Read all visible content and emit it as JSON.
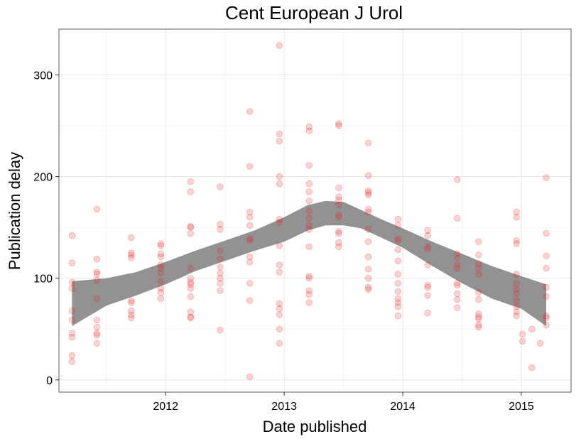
{
  "chart_data": {
    "type": "scatter",
    "title": "Cent European J Urol",
    "xlabel": "Date published",
    "ylabel": "Publication delay",
    "x_ticks": [
      "2012",
      "2013",
      "2014",
      "2015"
    ],
    "y_ticks": [
      "0",
      "100",
      "200",
      "300"
    ],
    "xlim": [
      2011.1,
      2015.42
    ],
    "ylim": [
      -12,
      345
    ],
    "grid": true,
    "legend": "none",
    "point_color": "#e8262a",
    "band_color": "#8c8c8c",
    "series": [
      {
        "values": [
          [
            2011.21,
            142
          ],
          [
            2011.21,
            115
          ],
          [
            2011.21,
            96
          ],
          [
            2011.21,
            90
          ],
          [
            2011.21,
            68
          ],
          [
            2011.21,
            59
          ],
          [
            2011.21,
            46
          ],
          [
            2011.21,
            42
          ],
          [
            2011.21,
            24
          ],
          [
            2011.21,
            18
          ],
          [
            2011.42,
            168
          ],
          [
            2011.42,
            119
          ],
          [
            2011.42,
            106
          ],
          [
            2011.42,
            104
          ],
          [
            2011.42,
            98
          ],
          [
            2011.42,
            80
          ],
          [
            2011.42,
            59
          ],
          [
            2011.42,
            52
          ],
          [
            2011.42,
            46
          ],
          [
            2011.42,
            44
          ],
          [
            2011.42,
            36
          ],
          [
            2011.71,
            140
          ],
          [
            2011.71,
            125
          ],
          [
            2011.71,
            123
          ],
          [
            2011.71,
            120
          ],
          [
            2011.71,
            78
          ],
          [
            2011.71,
            76
          ],
          [
            2011.71,
            68
          ],
          [
            2011.71,
            64
          ],
          [
            2011.71,
            61
          ],
          [
            2011.96,
            134
          ],
          [
            2011.96,
            132
          ],
          [
            2011.96,
            124
          ],
          [
            2011.96,
            121
          ],
          [
            2011.96,
            113
          ],
          [
            2011.96,
            110
          ],
          [
            2011.96,
            105
          ],
          [
            2011.96,
            97
          ],
          [
            2011.96,
            90
          ],
          [
            2011.96,
            86
          ],
          [
            2011.96,
            80
          ],
          [
            2012.21,
            195
          ],
          [
            2012.21,
            185
          ],
          [
            2012.21,
            151
          ],
          [
            2012.21,
            150
          ],
          [
            2012.21,
            144
          ],
          [
            2012.21,
            110
          ],
          [
            2012.21,
            100
          ],
          [
            2012.21,
            96
          ],
          [
            2012.21,
            94
          ],
          [
            2012.21,
            90
          ],
          [
            2012.21,
            82
          ],
          [
            2012.21,
            67
          ],
          [
            2012.21,
            62
          ],
          [
            2012.21,
            61
          ],
          [
            2012.46,
            190
          ],
          [
            2012.46,
            153
          ],
          [
            2012.46,
            148
          ],
          [
            2012.46,
            127
          ],
          [
            2012.46,
            119
          ],
          [
            2012.46,
            111
          ],
          [
            2012.46,
            105
          ],
          [
            2012.46,
            100
          ],
          [
            2012.46,
            95
          ],
          [
            2012.46,
            88
          ],
          [
            2012.46,
            49
          ],
          [
            2012.71,
            264
          ],
          [
            2012.71,
            210
          ],
          [
            2012.71,
            165
          ],
          [
            2012.71,
            160
          ],
          [
            2012.71,
            152
          ],
          [
            2012.71,
            139
          ],
          [
            2012.71,
            137
          ],
          [
            2012.71,
            121
          ],
          [
            2012.71,
            116
          ],
          [
            2012.71,
            95
          ],
          [
            2012.71,
            78
          ],
          [
            2012.71,
            3
          ],
          [
            2012.96,
            329
          ],
          [
            2012.96,
            242
          ],
          [
            2012.96,
            235
          ],
          [
            2012.96,
            200
          ],
          [
            2012.96,
            193
          ],
          [
            2012.96,
            158
          ],
          [
            2012.96,
            155
          ],
          [
            2012.96,
            132
          ],
          [
            2012.96,
            113
          ],
          [
            2012.96,
            106
          ],
          [
            2012.96,
            75
          ],
          [
            2012.96,
            70
          ],
          [
            2012.96,
            64
          ],
          [
            2012.96,
            50
          ],
          [
            2012.96,
            36
          ],
          [
            2013.21,
            249
          ],
          [
            2013.21,
            245
          ],
          [
            2013.21,
            211
          ],
          [
            2013.21,
            193
          ],
          [
            2013.21,
            185
          ],
          [
            2013.21,
            176
          ],
          [
            2013.21,
            166
          ],
          [
            2013.21,
            159
          ],
          [
            2013.21,
            152
          ],
          [
            2013.21,
            148
          ],
          [
            2013.21,
            131
          ],
          [
            2013.21,
            102
          ],
          [
            2013.21,
            100
          ],
          [
            2013.21,
            88
          ],
          [
            2013.21,
            84
          ],
          [
            2013.21,
            76
          ],
          [
            2013.46,
            252
          ],
          [
            2013.46,
            250
          ],
          [
            2013.46,
            189
          ],
          [
            2013.46,
            180
          ],
          [
            2013.46,
            177
          ],
          [
            2013.46,
            172
          ],
          [
            2013.46,
            162
          ],
          [
            2013.46,
            160
          ],
          [
            2013.46,
            146
          ],
          [
            2013.46,
            144
          ],
          [
            2013.46,
            135
          ],
          [
            2013.46,
            131
          ],
          [
            2013.71,
            233
          ],
          [
            2013.71,
            201
          ],
          [
            2013.71,
            186
          ],
          [
            2013.71,
            184
          ],
          [
            2013.71,
            182
          ],
          [
            2013.71,
            168
          ],
          [
            2013.71,
            165
          ],
          [
            2013.71,
            148
          ],
          [
            2013.71,
            136
          ],
          [
            2013.71,
            121
          ],
          [
            2013.71,
            109
          ],
          [
            2013.71,
            100
          ],
          [
            2013.71,
            91
          ],
          [
            2013.71,
            89
          ],
          [
            2013.96,
            158
          ],
          [
            2013.96,
            152
          ],
          [
            2013.96,
            139
          ],
          [
            2013.96,
            137
          ],
          [
            2013.96,
            128
          ],
          [
            2013.96,
            117
          ],
          [
            2013.96,
            104
          ],
          [
            2013.96,
            95
          ],
          [
            2013.96,
            87
          ],
          [
            2013.96,
            80
          ],
          [
            2013.96,
            76
          ],
          [
            2013.96,
            72
          ],
          [
            2013.96,
            63
          ],
          [
            2014.21,
            147
          ],
          [
            2014.21,
            142
          ],
          [
            2014.21,
            131
          ],
          [
            2014.21,
            129
          ],
          [
            2014.21,
            113
          ],
          [
            2014.21,
            93
          ],
          [
            2014.21,
            91
          ],
          [
            2014.21,
            83
          ],
          [
            2014.21,
            66
          ],
          [
            2014.46,
            197
          ],
          [
            2014.46,
            159
          ],
          [
            2014.46,
            124
          ],
          [
            2014.46,
            120
          ],
          [
            2014.46,
            113
          ],
          [
            2014.46,
            110
          ],
          [
            2014.46,
            95
          ],
          [
            2014.46,
            93
          ],
          [
            2014.46,
            85
          ],
          [
            2014.46,
            79
          ],
          [
            2014.46,
            71
          ],
          [
            2014.64,
            136
          ],
          [
            2014.64,
            123
          ],
          [
            2014.64,
            114
          ],
          [
            2014.64,
            110
          ],
          [
            2014.64,
            104
          ],
          [
            2014.64,
            86
          ],
          [
            2014.64,
            79
          ],
          [
            2014.64,
            65
          ],
          [
            2014.64,
            62
          ],
          [
            2014.64,
            60
          ],
          [
            2014.64,
            54
          ],
          [
            2014.64,
            52
          ],
          [
            2014.96,
            165
          ],
          [
            2014.96,
            160
          ],
          [
            2014.96,
            137
          ],
          [
            2014.96,
            134
          ],
          [
            2014.96,
            104
          ],
          [
            2014.96,
            95
          ],
          [
            2014.96,
            89
          ],
          [
            2014.96,
            85
          ],
          [
            2014.96,
            78
          ],
          [
            2014.96,
            72
          ],
          [
            2014.96,
            67
          ],
          [
            2014.96,
            63
          ],
          [
            2015.01,
            45
          ],
          [
            2015.01,
            38
          ],
          [
            2015.09,
            50
          ],
          [
            2015.09,
            12
          ],
          [
            2015.16,
            36
          ],
          [
            2015.21,
            199
          ],
          [
            2015.21,
            144
          ],
          [
            2015.21,
            122
          ],
          [
            2015.21,
            110
          ],
          [
            2015.21,
            91
          ],
          [
            2015.21,
            82
          ],
          [
            2015.21,
            63
          ],
          [
            2015.21,
            61
          ],
          [
            2015.21,
            54
          ]
        ]
      }
    ],
    "smooth_band": {
      "x": [
        2011.21,
        2011.5,
        2011.75,
        2012.0,
        2012.25,
        2012.5,
        2012.75,
        2013.0,
        2013.2,
        2013.35,
        2013.5,
        2013.65,
        2013.8,
        2014.0,
        2014.25,
        2014.5,
        2014.75,
        2015.0,
        2015.21
      ],
      "upper": [
        97,
        100,
        106,
        116,
        127,
        137,
        147,
        160,
        172,
        176,
        175,
        167,
        159,
        149,
        136,
        124,
        112,
        102,
        94
      ],
      "lower": [
        53,
        73,
        83,
        94,
        107,
        117,
        127,
        136,
        147,
        152,
        152,
        149,
        141,
        130,
        112,
        95,
        80,
        70,
        53
      ]
    }
  }
}
